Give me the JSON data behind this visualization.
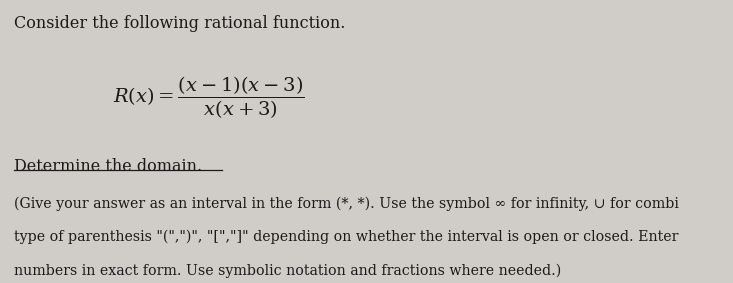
{
  "bg_color": "#d0ccc8",
  "text_color": "#1a1a1a",
  "line1": "Consider the following rational function.",
  "formula": "$R(x) = \\dfrac{(x-1)(x-3)}{x(x+3)}$",
  "line3": "Determine the domain.",
  "line4": "(Give your answer as an interval in the form (*, *). Use the symbol ∞ for infinity, ∪ for combi",
  "line5": "type of parenthesis \"(\",\")\", \"[\",\"]\" depending on whether the interval is open or closed. Enter",
  "line6": "numbers in exact form. Use symbolic notation and fractions where needed.)"
}
